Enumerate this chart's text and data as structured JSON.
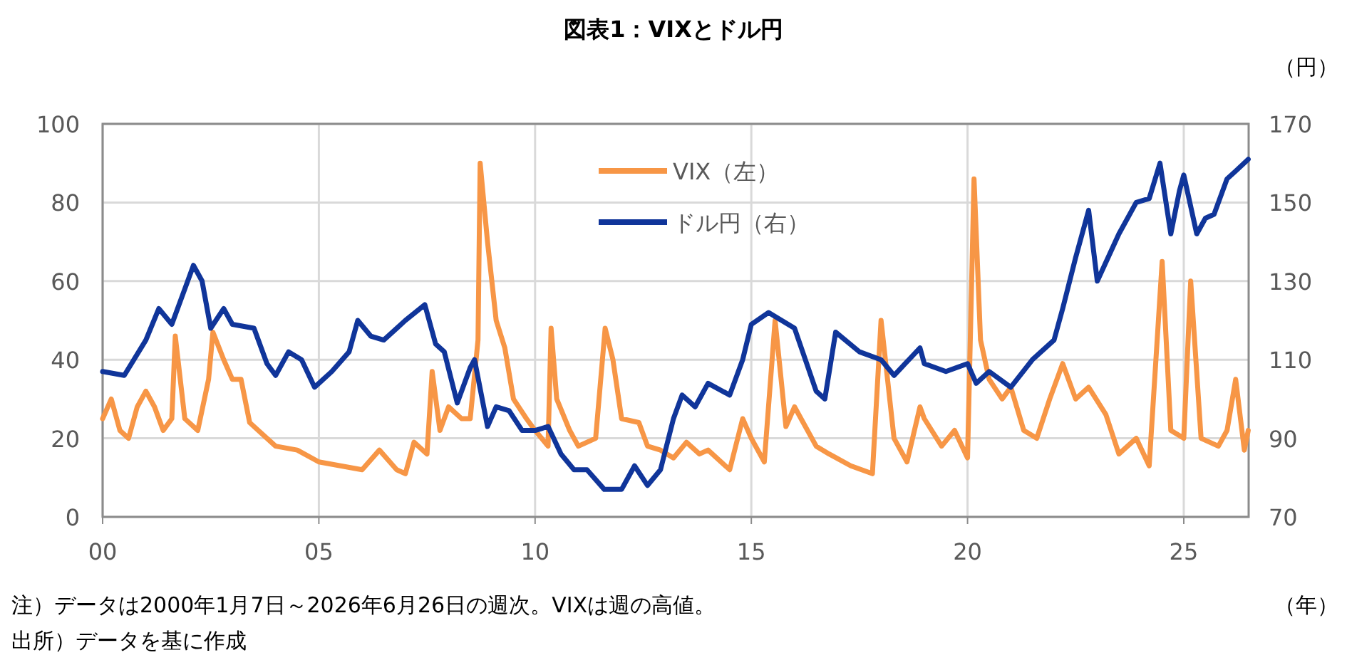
{
  "chart_data": {
    "type": "line",
    "title": "図表1：VIXとドル円",
    "y2label": "（円）",
    "xlabel": "（年）",
    "annotations": [
      "注）データは2000年1月7日～2026年6月26日の週次。VIXは週の高値。",
      "出所）データを基に作成"
    ],
    "xlim": [
      2000,
      2026.5
    ],
    "xticks": [
      {
        "value": 2000,
        "label": "00"
      },
      {
        "value": 2005,
        "label": "05"
      },
      {
        "value": 2010,
        "label": "10"
      },
      {
        "value": 2015,
        "label": "15"
      },
      {
        "value": 2020,
        "label": "20"
      },
      {
        "value": 2025,
        "label": "25"
      }
    ],
    "ylim": [
      0,
      100
    ],
    "yticks": [
      0,
      20,
      40,
      60,
      80,
      100
    ],
    "y2lim": [
      70,
      170
    ],
    "y2ticks": [
      70,
      90,
      110,
      130,
      150,
      170
    ],
    "grid": true,
    "legend": "top",
    "line_style": "solid",
    "marker": "none",
    "series": [
      {
        "name": "VIX（左）",
        "color": "#f79646",
        "x": [
          2000.0,
          2000.2,
          2000.4,
          2000.6,
          2000.8,
          2001.0,
          2001.2,
          2001.4,
          2001.6,
          2001.68,
          2001.9,
          2002.2,
          2002.45,
          2002.55,
          2002.8,
          2003.0,
          2003.2,
          2003.4,
          2003.8,
          2004.0,
          2004.5,
          2005.0,
          2005.5,
          2006.0,
          2006.4,
          2006.8,
          2007.0,
          2007.2,
          2007.5,
          2007.62,
          2007.8,
          2008.0,
          2008.3,
          2008.5,
          2008.68,
          2008.73,
          2008.9,
          2009.1,
          2009.3,
          2009.5,
          2009.8,
          2010.0,
          2010.3,
          2010.37,
          2010.5,
          2010.8,
          2011.0,
          2011.4,
          2011.62,
          2011.8,
          2012.0,
          2012.4,
          2012.6,
          2012.9,
          2013.2,
          2013.5,
          2013.8,
          2014.0,
          2014.5,
          2014.8,
          2015.0,
          2015.3,
          2015.55,
          2015.8,
          2016.0,
          2016.5,
          2016.8,
          2017.3,
          2017.8,
          2018.0,
          2018.3,
          2018.6,
          2018.9,
          2019.0,
          2019.4,
          2019.7,
          2020.0,
          2020.15,
          2020.3,
          2020.5,
          2020.8,
          2021.0,
          2021.3,
          2021.6,
          2021.9,
          2022.2,
          2022.5,
          2022.8,
          2023.2,
          2023.5,
          2023.9,
          2024.2,
          2024.5,
          2024.7,
          2025.0,
          2025.16,
          2025.4,
          2025.8,
          2026.0,
          2026.2,
          2026.4,
          2026.49
        ],
        "values": [
          25,
          30,
          22,
          20,
          28,
          32,
          28,
          22,
          25,
          46,
          25,
          22,
          35,
          47,
          40,
          35,
          35,
          24,
          20,
          18,
          17,
          14,
          13,
          12,
          17,
          12,
          11,
          19,
          16,
          37,
          22,
          28,
          25,
          25,
          45,
          90,
          70,
          50,
          43,
          30,
          25,
          22,
          18,
          48,
          30,
          22,
          18,
          20,
          48,
          40,
          25,
          24,
          18,
          17,
          15,
          19,
          16,
          17,
          12,
          25,
          20,
          14,
          50,
          23,
          28,
          18,
          16,
          13,
          11,
          50,
          20,
          14,
          28,
          25,
          18,
          22,
          15,
          86,
          45,
          35,
          30,
          33,
          22,
          20,
          30,
          39,
          30,
          33,
          26,
          16,
          20,
          13,
          65,
          22,
          20,
          60,
          20,
          18,
          22,
          35,
          17,
          22
        ]
      },
      {
        "name": "ドル円（右）",
        "color": "#10359a",
        "axis": "y2",
        "x": [
          2000.0,
          2000.5,
          2001.0,
          2001.3,
          2001.6,
          2001.9,
          2002.1,
          2002.3,
          2002.5,
          2002.8,
          2003.0,
          2003.5,
          2003.8,
          2004.0,
          2004.3,
          2004.6,
          2004.9,
          2005.0,
          2005.3,
          2005.7,
          2005.9,
          2006.2,
          2006.5,
          2006.8,
          2007.0,
          2007.45,
          2007.7,
          2007.9,
          2008.2,
          2008.5,
          2008.6,
          2008.9,
          2009.1,
          2009.4,
          2009.7,
          2010.0,
          2010.3,
          2010.6,
          2010.9,
          2011.2,
          2011.6,
          2012.0,
          2012.3,
          2012.6,
          2012.9,
          2013.2,
          2013.4,
          2013.7,
          2014.0,
          2014.5,
          2014.8,
          2015.0,
          2015.4,
          2015.7,
          2016.0,
          2016.5,
          2016.7,
          2016.95,
          2017.5,
          2018.0,
          2018.3,
          2018.9,
          2019.0,
          2019.5,
          2020.0,
          2020.2,
          2020.5,
          2021.0,
          2021.5,
          2022.0,
          2022.2,
          2022.5,
          2022.8,
          2023.0,
          2023.5,
          2023.9,
          2024.2,
          2024.45,
          2024.7,
          2024.9,
          2025.0,
          2025.3,
          2025.5,
          2025.7,
          2026.0,
          2026.2,
          2026.49
        ],
        "values": [
          107,
          106,
          115,
          123,
          119,
          128,
          134,
          130,
          118,
          123,
          119,
          118,
          109,
          106,
          112,
          110,
          103,
          104,
          107,
          112,
          120,
          116,
          115,
          118,
          120,
          124,
          114,
          112,
          99,
          108,
          110,
          93,
          98,
          97,
          92,
          92,
          93,
          86,
          82,
          82,
          77,
          77,
          83,
          78,
          82,
          95,
          101,
          98,
          104,
          101,
          110,
          119,
          122,
          120,
          118,
          102,
          100,
          117,
          112,
          110,
          106,
          113,
          109,
          107,
          109,
          104,
          107,
          103,
          110,
          115,
          123,
          136,
          148,
          130,
          142,
          150,
          151,
          160,
          142,
          153,
          157,
          142,
          146,
          147,
          156,
          158,
          161
        ]
      }
    ]
  }
}
